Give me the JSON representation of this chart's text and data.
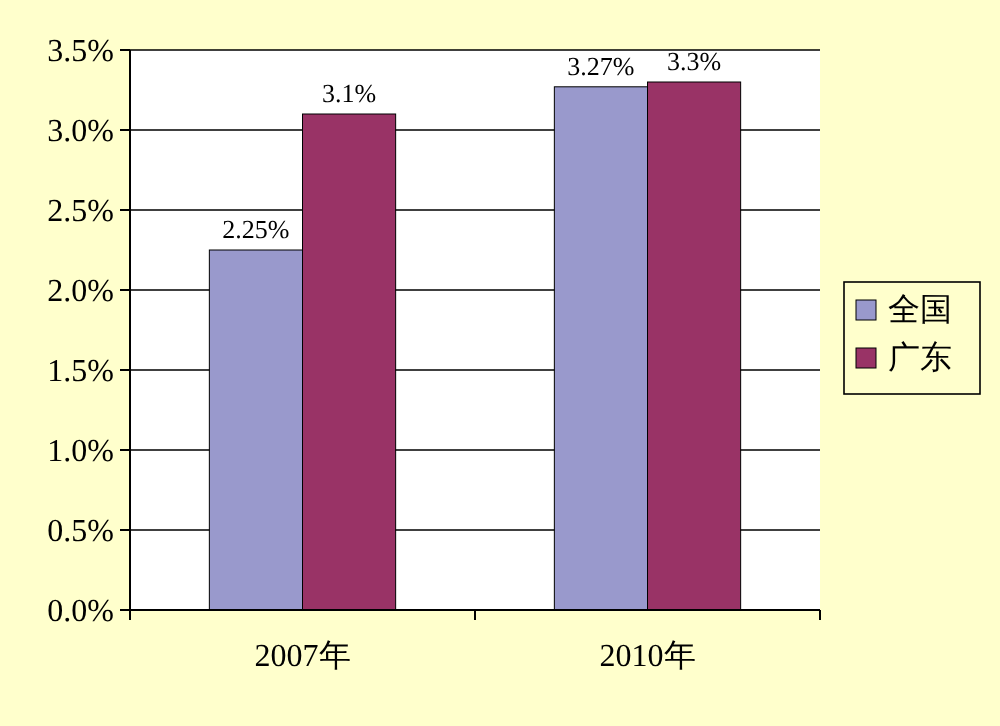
{
  "chart_data": {
    "type": "bar",
    "categories": [
      "2007年",
      "2010年"
    ],
    "series": [
      {
        "name": "全国",
        "color": "#9999cc",
        "values": [
          2.25,
          3.27
        ],
        "value_labels": [
          "2.25%",
          "3.27%"
        ]
      },
      {
        "name": "广东",
        "color": "#993366",
        "values": [
          3.1,
          3.3
        ],
        "value_labels": [
          "3.1%",
          "3.3%"
        ]
      }
    ],
    "ylim": [
      0,
      3.5
    ],
    "yticks": [
      {
        "value": 0,
        "label": "0.0%"
      },
      {
        "value": 0.5,
        "label": "0.5%"
      },
      {
        "value": 1,
        "label": "1.0%"
      },
      {
        "value": 1.5,
        "label": "1.5%"
      },
      {
        "value": 2,
        "label": "2.0%"
      },
      {
        "value": 2.5,
        "label": "2.5%"
      },
      {
        "value": 3,
        "label": "3.0%"
      },
      {
        "value": 3.5,
        "label": "3.5%"
      }
    ],
    "grid": "y",
    "legend": "right"
  }
}
